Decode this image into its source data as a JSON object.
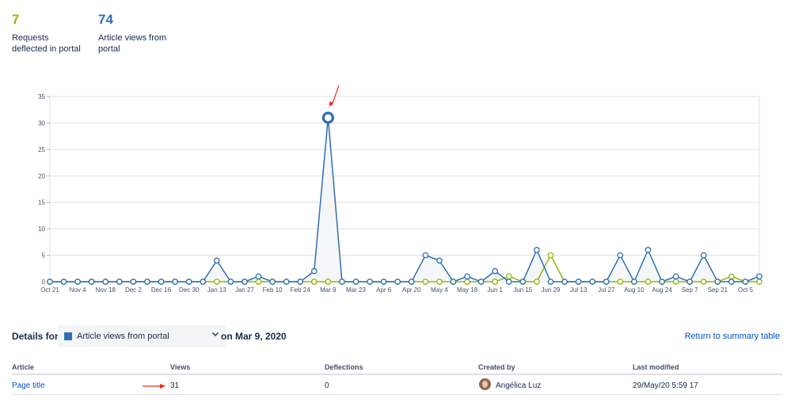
{
  "stats": [
    {
      "value": "7",
      "label_line1": "Requests",
      "label_line2": "deflected in portal",
      "color": "#8fb70a"
    },
    {
      "value": "74",
      "label_line1": "Article views from",
      "label_line2": "portal",
      "color": "#2f6fb3"
    }
  ],
  "chart_data": {
    "type": "line",
    "ylim": [
      0,
      35
    ],
    "yticks": [
      0,
      5,
      10,
      15,
      20,
      25,
      30,
      35
    ],
    "grid": true,
    "x_labels": [
      "Oct 21",
      "Nov 4",
      "Nov 18",
      "Dec 2",
      "Dec 16",
      "Dec 30",
      "Jan 13",
      "Jan 27",
      "Feb 10",
      "Feb 24",
      "Mar 9",
      "Mar 23",
      "Apr 6",
      "Apr 20",
      "May 4",
      "May 18",
      "Jun 1",
      "Jun 15",
      "Jun 29",
      "Jul 13",
      "Jul 27",
      "Aug 10",
      "Aug 24",
      "Sep 7",
      "Sep 21",
      "Oct 5"
    ],
    "series": [
      {
        "name": "Requests deflected in portal",
        "color": "#8fb70a",
        "values": [
          0,
          0,
          0,
          0,
          0,
          0,
          0,
          0,
          0,
          0,
          0,
          0,
          0,
          0,
          0,
          0,
          0,
          0,
          0,
          0,
          0,
          0,
          0,
          0,
          0,
          0,
          0,
          0,
          0,
          0,
          0,
          0,
          0,
          1,
          0,
          0,
          5,
          0,
          0,
          0,
          0,
          0,
          0,
          0,
          0,
          0,
          0,
          0,
          0,
          1,
          0,
          0
        ]
      },
      {
        "name": "Article views from portal",
        "color": "#2f6fb3",
        "values": [
          0,
          0,
          0,
          0,
          0,
          0,
          0,
          0,
          0,
          0,
          0,
          0,
          4,
          0,
          0,
          1,
          0,
          0,
          0,
          2,
          31,
          0,
          0,
          0,
          0,
          0,
          0,
          5,
          4,
          0,
          1,
          0,
          2,
          0,
          0,
          6,
          0,
          0,
          0,
          0,
          0,
          5,
          0,
          6,
          0,
          1,
          0,
          5,
          0,
          0,
          0,
          1
        ]
      }
    ],
    "highlight": {
      "series": "Article views from portal",
      "index": 20,
      "value": 31
    }
  },
  "details": {
    "label": "Details for",
    "selected": "Article views from portal",
    "date_text": "on Mar 9, 2020",
    "return_link": "Return to summary table"
  },
  "table": {
    "headers": [
      "Article",
      "Views",
      "Deflections",
      "Created by",
      "Last modified"
    ],
    "rows": [
      {
        "article": "Page title",
        "views": "31",
        "deflections": "0",
        "created_by": "Angélica Luz",
        "last_modified": "29/May/20 5:59 17"
      }
    ]
  }
}
